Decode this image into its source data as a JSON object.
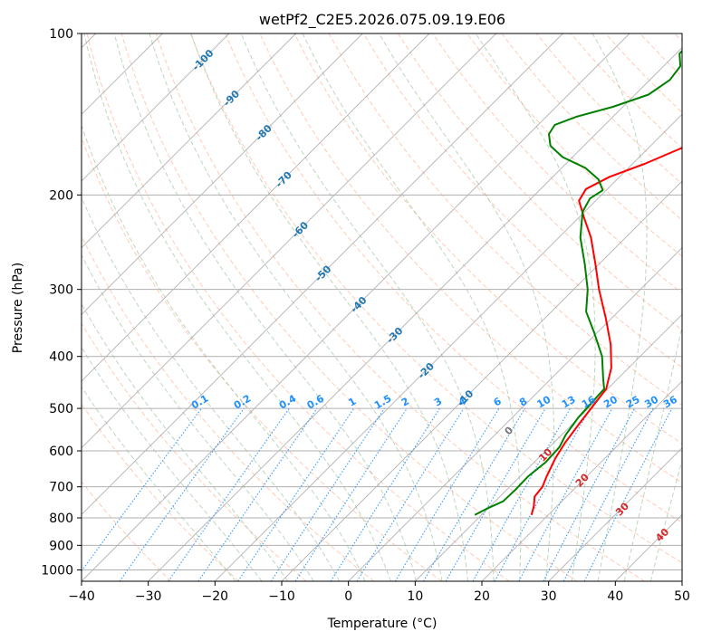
{
  "chart_data": {
    "type": "skew-t",
    "title": "wetPf2_C2E5.2026.075.09.19.E06",
    "xlabel": "Temperature (°C)",
    "ylabel": "Pressure (hPa)",
    "xlim": [
      -40,
      50
    ],
    "ylim": [
      1050,
      100
    ],
    "x_ticks": [
      -40,
      -30,
      -20,
      -10,
      0,
      10,
      20,
      30,
      40,
      50
    ],
    "y_ticks": [
      100,
      200,
      300,
      400,
      500,
      600,
      700,
      800,
      900,
      1000
    ],
    "colors": {
      "temperature": "#ff0000",
      "dewpoint": "#008000",
      "dry_adiabat": "#ffa07a",
      "moist_adiabat": "#8fbc8f",
      "mixing_ratio": "#1e90ff",
      "isotherm": "#999999",
      "dry_adiabat_label": "#1f77b4",
      "moist_adiabat_label": "#d62728"
    },
    "series": [
      {
        "name": "Temperature",
        "points": [
          {
            "p": 790,
            "t": 17.5
          },
          {
            "p": 760,
            "t": 16.5
          },
          {
            "p": 730,
            "t": 15.2
          },
          {
            "p": 700,
            "t": 14.9
          },
          {
            "p": 670,
            "t": 14.0
          },
          {
            "p": 620,
            "t": 12.6
          },
          {
            "p": 580,
            "t": 11.7
          },
          {
            "p": 530,
            "t": 10.9
          },
          {
            "p": 490,
            "t": 10.3
          },
          {
            "p": 460,
            "t": 9.8
          },
          {
            "p": 420,
            "t": 7.4
          },
          {
            "p": 380,
            "t": 3.8
          },
          {
            "p": 340,
            "t": -0.8
          },
          {
            "p": 300,
            "t": -6.2
          },
          {
            "p": 270,
            "t": -10.4
          },
          {
            "p": 240,
            "t": -15.2
          },
          {
            "p": 220,
            "t": -19.3
          },
          {
            "p": 205,
            "t": -22.5
          },
          {
            "p": 195,
            "t": -23.2
          },
          {
            "p": 185,
            "t": -21.5
          },
          {
            "p": 175,
            "t": -18.2
          },
          {
            "p": 160,
            "t": -14.0
          },
          {
            "p": 148,
            "t": -11.5
          },
          {
            "p": 135,
            "t": -9.8
          },
          {
            "p": 125,
            "t": -8.7
          },
          {
            "p": 115,
            "t": -8.1
          },
          {
            "p": 107,
            "t": -7.8
          },
          {
            "p": 100,
            "t": -6.6
          }
        ]
      },
      {
        "name": "Dewpoint",
        "points": [
          {
            "p": 790,
            "t": 9.0
          },
          {
            "p": 770,
            "t": 9.8
          },
          {
            "p": 745,
            "t": 11.2
          },
          {
            "p": 710,
            "t": 11.3
          },
          {
            "p": 670,
            "t": 11.2
          },
          {
            "p": 630,
            "t": 11.7
          },
          {
            "p": 590,
            "t": 11.5
          },
          {
            "p": 560,
            "t": 10.6
          },
          {
            "p": 520,
            "t": 9.9
          },
          {
            "p": 490,
            "t": 9.7
          },
          {
            "p": 460,
            "t": 9.5
          },
          {
            "p": 440,
            "t": 7.8
          },
          {
            "p": 400,
            "t": 4.3
          },
          {
            "p": 360,
            "t": -0.6
          },
          {
            "p": 330,
            "t": -4.8
          },
          {
            "p": 300,
            "t": -7.9
          },
          {
            "p": 270,
            "t": -12.0
          },
          {
            "p": 240,
            "t": -16.8
          },
          {
            "p": 215,
            "t": -20.3
          },
          {
            "p": 203,
            "t": -21.2
          },
          {
            "p": 196,
            "t": -20.5
          },
          {
            "p": 187,
            "t": -22.8
          },
          {
            "p": 178,
            "t": -26.5
          },
          {
            "p": 170,
            "t": -31.5
          },
          {
            "p": 162,
            "t": -35.0
          },
          {
            "p": 154,
            "t": -37.0
          },
          {
            "p": 148,
            "t": -37.5
          },
          {
            "p": 143,
            "t": -35.5
          },
          {
            "p": 137,
            "t": -31.5
          },
          {
            "p": 130,
            "t": -28.0
          },
          {
            "p": 122,
            "t": -27.0
          },
          {
            "p": 115,
            "t": -27.5
          },
          {
            "p": 109,
            "t": -29.5
          },
          {
            "p": 104,
            "t": -29.5
          },
          {
            "p": 100,
            "t": -27.8
          }
        ]
      }
    ],
    "dry_adiabat_labels": [
      "-100",
      "-90",
      "-80",
      "-70",
      "-60",
      "-50",
      "-40",
      "-30",
      "-20",
      "-10"
    ],
    "moist_adiabat_labels": [
      "0",
      "10",
      "20",
      "30",
      "40"
    ],
    "mixing_ratio_labels": [
      "0.1",
      "0.2",
      "0.4",
      "0.6",
      "1",
      "1.5",
      "2",
      "3",
      "4",
      "6",
      "8",
      "10",
      "13",
      "16",
      "20",
      "25",
      "30",
      "36"
    ]
  }
}
